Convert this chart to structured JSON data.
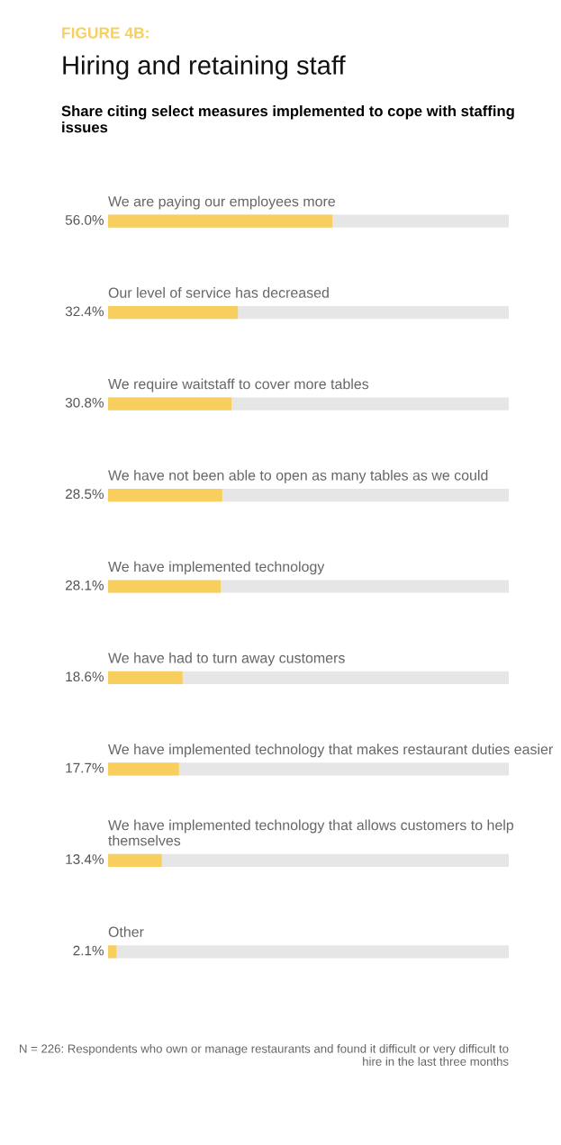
{
  "chart_data": {
    "type": "bar",
    "orientation": "horizontal",
    "title": "Hiring and retaining staff",
    "subtitle": "Share citing select measures implemented to cope with staffing issues",
    "annotations": [
      "FIGURE 4B:",
      "N = 226: Respondents who own or manage restaurants and found it difficult or very difficult to hire in the last three months"
    ],
    "categories": [
      "We are paying our employees more",
      "Our level of service has decreased",
      "We require waitstaff to cover more tables",
      "We have not been able to open as many tables as we could",
      "We have implemented technology",
      "We have had to turn away customers",
      "We have implemented technology that makes restaurant duties easier",
      "We have implemented technology that allows customers to help themselves",
      "Other"
    ],
    "values": [
      56.0,
      32.4,
      30.8,
      28.5,
      28.1,
      18.6,
      17.7,
      13.4,
      2.1
    ],
    "value_labels": [
      "56.0%",
      "32.4%",
      "30.8%",
      "28.5%",
      "28.1%",
      "18.6%",
      "17.7%",
      "13.4%",
      "2.1%"
    ],
    "color": "#f8cf5f",
    "xlim": [
      0,
      100
    ]
  }
}
